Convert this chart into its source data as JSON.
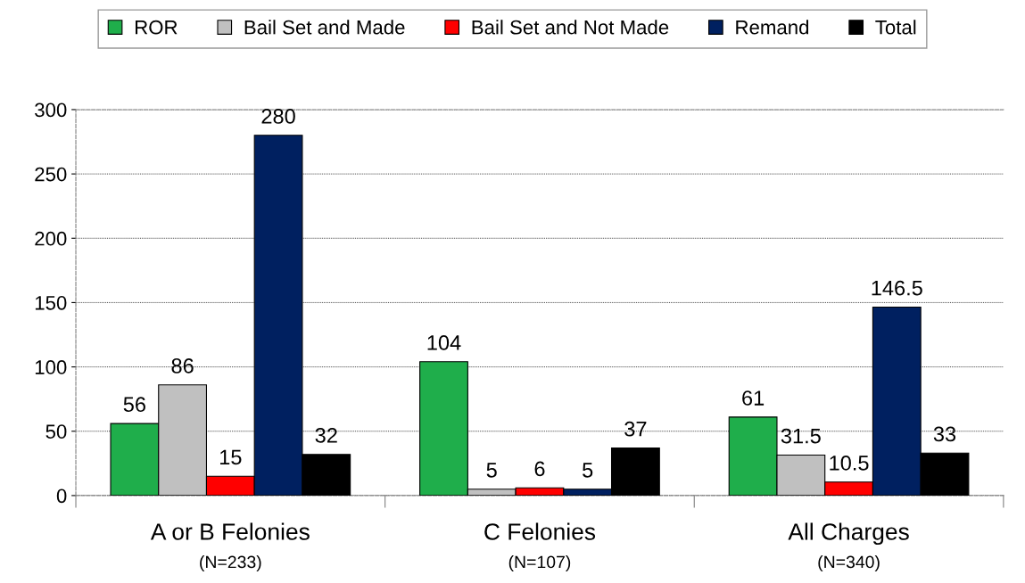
{
  "chart_data": {
    "type": "bar",
    "categories": [
      "A or B Felonies",
      "C Felonies",
      "All Charges"
    ],
    "series": [
      {
        "name": "ROR",
        "color": "#1fae4b",
        "values": [
          56,
          104,
          61
        ]
      },
      {
        "name": "Bail Set and Made",
        "color": "#c0c0c0",
        "values": [
          86,
          5,
          31.5
        ]
      },
      {
        "name": "Bail Set and Not Made",
        "color": "#ff0000",
        "values": [
          15,
          6,
          10.5
        ]
      },
      {
        "name": "Remand",
        "color": "#002060",
        "values": [
          280,
          5,
          146.5
        ]
      },
      {
        "name": "Total",
        "color": "#000000",
        "values": [
          32,
          37,
          33
        ]
      }
    ],
    "annotations": [
      "(N=233)",
      "(N=107)",
      "(N=340)"
    ],
    "ylim": [
      0,
      300
    ],
    "yticks": [
      0,
      50,
      100,
      150,
      200,
      250,
      300
    ],
    "grid": "y",
    "legend": "top",
    "data_labels": true
  }
}
